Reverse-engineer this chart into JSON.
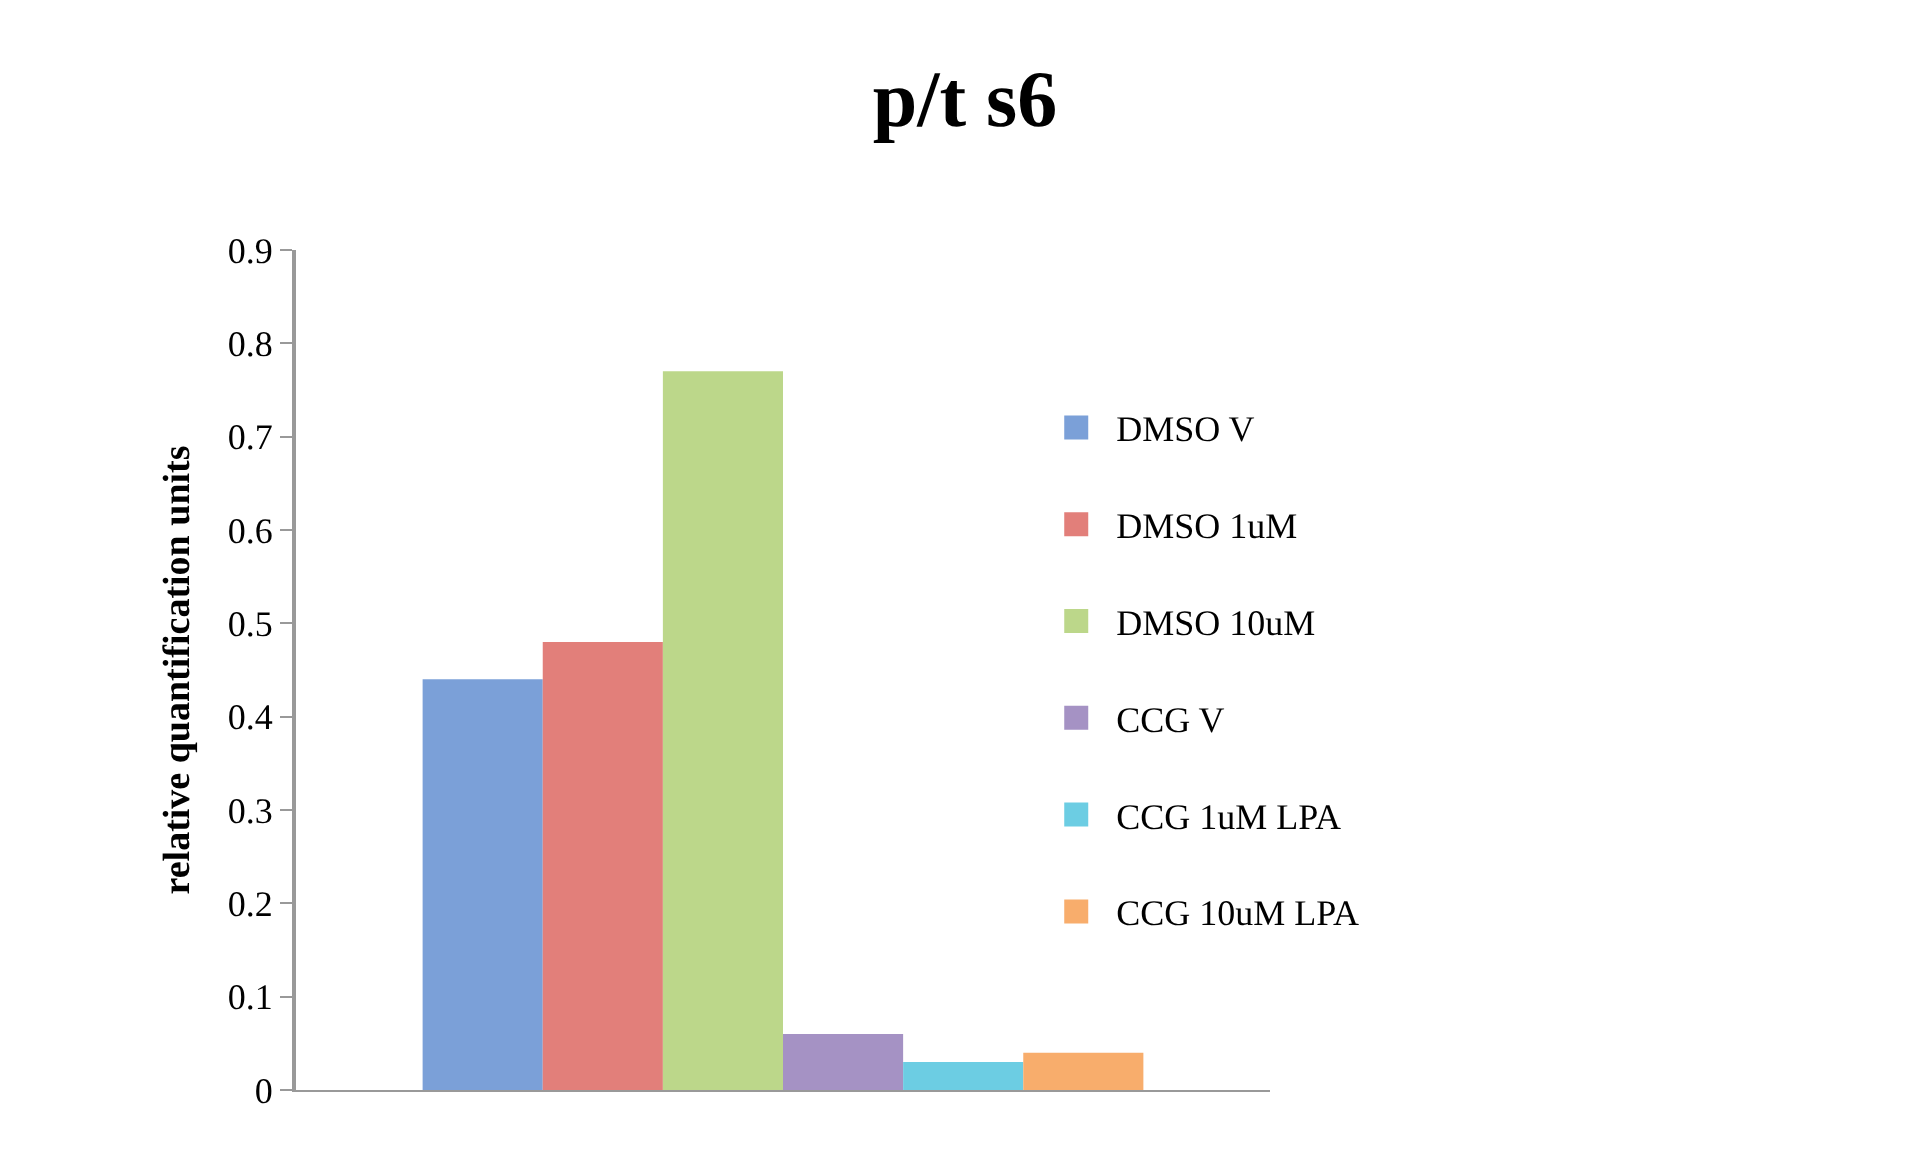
{
  "chart_data": {
    "type": "bar",
    "title": "p/t s6",
    "ylabel": "relative quantification units",
    "categories": [
      null
    ],
    "series": [
      {
        "name": "DMSO V",
        "color": "#7ba0d8",
        "values": [
          0.44
        ]
      },
      {
        "name": "DMSO 1uM",
        "color": "#e27f7a",
        "values": [
          0.48
        ]
      },
      {
        "name": "DMSO 10uM",
        "color": "#bcd78a",
        "values": [
          0.77
        ]
      },
      {
        "name": "CCG V",
        "color": "#a592c4",
        "values": [
          0.06
        ]
      },
      {
        "name": "CCG 1uM LPA",
        "color": "#6ccde3",
        "values": [
          0.03
        ]
      },
      {
        "name": "CCG 10uM LPA",
        "color": "#f8ad6c",
        "values": [
          0.04
        ]
      }
    ],
    "ylim": [
      0,
      0.9
    ],
    "yticks": [
      0,
      0.1,
      0.2,
      0.3,
      0.4,
      0.5,
      0.6,
      0.7,
      0.8,
      0.9
    ],
    "grid": false,
    "legend": "right"
  }
}
